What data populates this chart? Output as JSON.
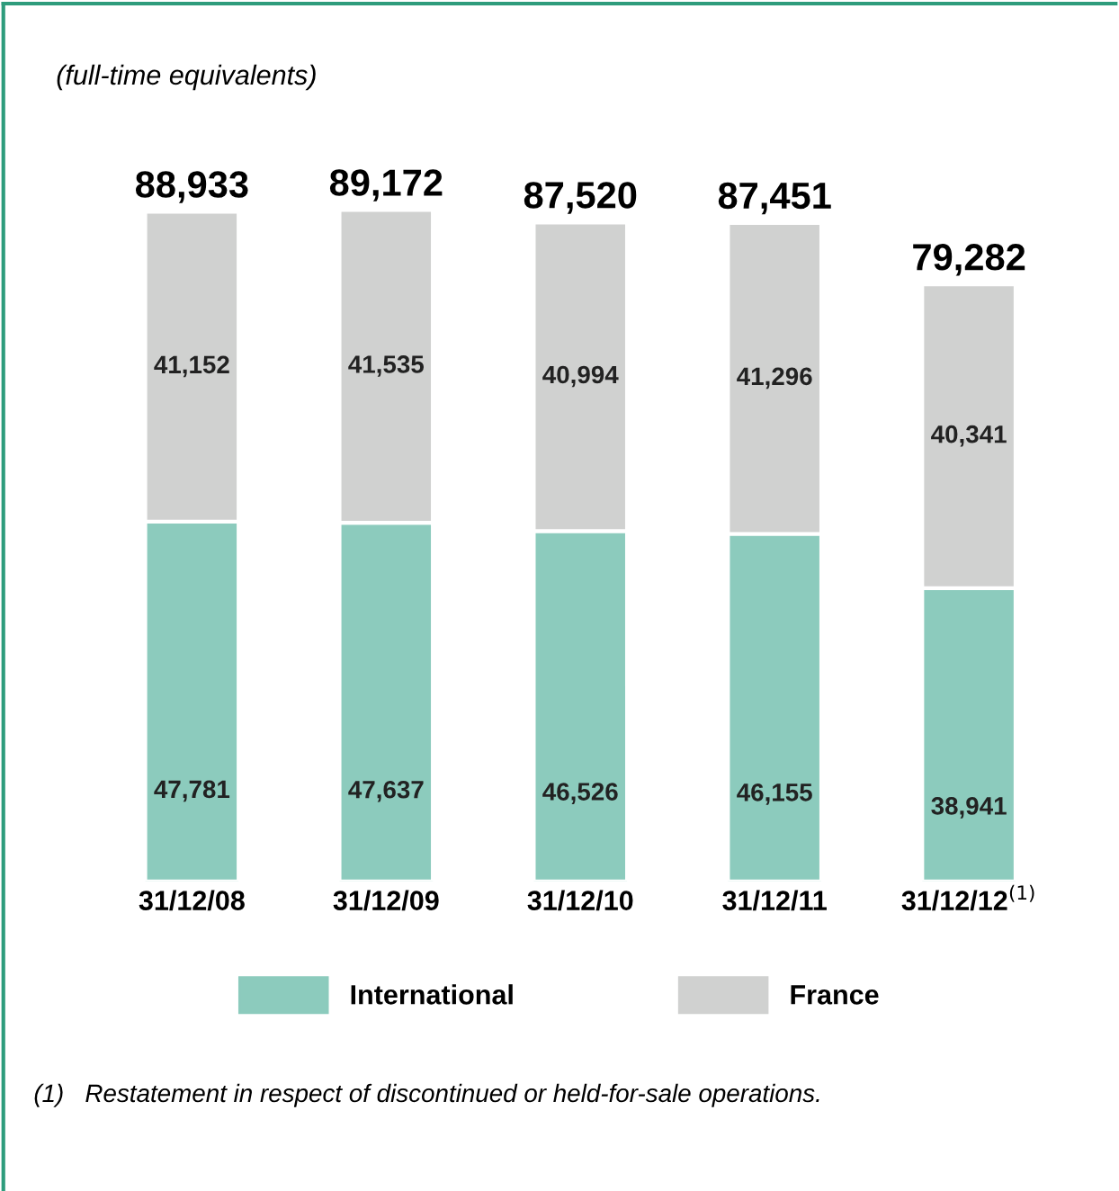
{
  "chart_data": {
    "type": "bar",
    "title": "(full-time equivalents)",
    "stacked": true,
    "categories": [
      "31/12/08",
      "31/12/09",
      "31/12/10",
      "31/12/11",
      "31/12/12$^{(1)}$"
    ],
    "series": [
      {
        "name": "International",
        "color": "#8ccbbd",
        "values": [
          47781,
          47637,
          46526,
          46155,
          38941
        ],
        "value_labels": [
          "47,781",
          "47,637",
          "46,526",
          "46,155",
          "38,941"
        ]
      },
      {
        "name": "France",
        "color": "#d0d1d0",
        "values": [
          41152,
          41535,
          40994,
          41296,
          40341
        ],
        "value_labels": [
          "41,152",
          "41,535",
          "40,994",
          "41,296",
          "40,341"
        ]
      }
    ],
    "totals": [
      "88,933",
      "89,172",
      "87,520",
      "87,451",
      "79,282"
    ],
    "legend": "bottom",
    "grid": false,
    "annotations": [
      "(1)   Restatement in respect of discontinued or held-for-sale operations."
    ]
  }
}
